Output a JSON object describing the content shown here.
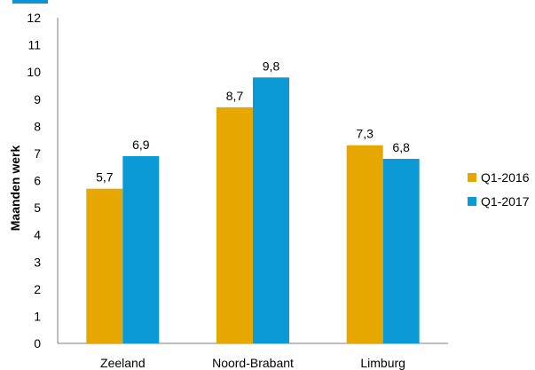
{
  "chart_data": {
    "type": "bar",
    "categories": [
      "Zeeland",
      "Noord-Brabant",
      "Limburg"
    ],
    "series": [
      {
        "name": "Q1-2016",
        "values": [
          5.7,
          8.7,
          7.3
        ],
        "labels": [
          "5,7",
          "8,7",
          "7,3"
        ],
        "color": "#e6a700"
      },
      {
        "name": "Q1-2017",
        "values": [
          6.9,
          9.8,
          6.8
        ],
        "labels": [
          "6,9",
          "9,8",
          "6,8"
        ],
        "color": "#0c9ad6"
      }
    ],
    "ylabel": "Maanden werk",
    "xlabel": "",
    "ylim": [
      0,
      12
    ],
    "yticks": [
      0,
      1,
      2,
      3,
      4,
      5,
      6,
      7,
      8,
      9,
      10,
      11,
      12
    ],
    "legend_position": "right",
    "grid": false
  }
}
